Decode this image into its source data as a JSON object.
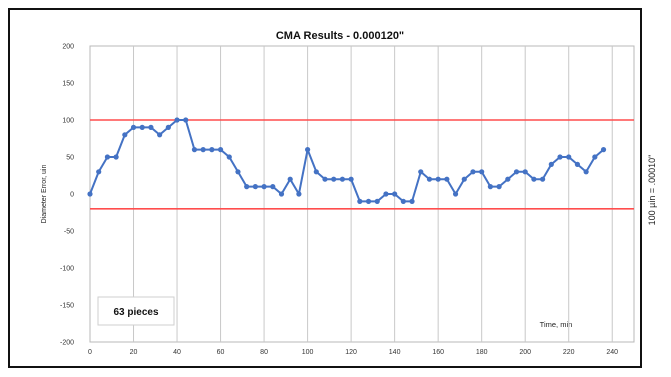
{
  "side_note": "100 µin = .00010\"",
  "chart_data": {
    "type": "line",
    "title": "CMA Results - 0.000120\"",
    "xlabel": "Time, min",
    "ylabel": "Diameter Error, uin",
    "annotation": "63 pieces",
    "xlim": [
      0,
      250
    ],
    "ylim": [
      -200,
      200
    ],
    "x_ticks": [
      0,
      20,
      40,
      60,
      80,
      100,
      120,
      140,
      160,
      180,
      200,
      220,
      240
    ],
    "y_ticks": [
      200,
      150,
      100,
      50,
      0,
      -50,
      -100,
      -150,
      -200
    ],
    "x_tick_labels": [
      "0",
      "20",
      "40",
      "60",
      "80",
      "100",
      "120",
      "140",
      "160",
      "180",
      "200",
      "220",
      "240"
    ],
    "y_tick_labels": [
      "200",
      "150",
      "100",
      "50",
      "0",
      "-50",
      "-100",
      "-150",
      "-200"
    ],
    "grid": "vertical",
    "limit_lines": [
      100,
      -20
    ],
    "series": [
      {
        "color": "#4472c4",
        "x": [
          0,
          4,
          8,
          12,
          16,
          20,
          24,
          28,
          32,
          36,
          40,
          44,
          48,
          52,
          56,
          60,
          64,
          68,
          72,
          76,
          80,
          84,
          88,
          92,
          96,
          100,
          104,
          108,
          112,
          116,
          120,
          124,
          128,
          132,
          136,
          140,
          144,
          148,
          152,
          156,
          160,
          164,
          168,
          172,
          176,
          180,
          184,
          188,
          192,
          196,
          200,
          204,
          208,
          212,
          216,
          220,
          224,
          228,
          232,
          236
        ],
        "y": [
          0,
          30,
          50,
          50,
          80,
          90,
          90,
          90,
          80,
          90,
          100,
          100,
          60,
          60,
          60,
          60,
          50,
          30,
          10,
          10,
          10,
          10,
          0,
          20,
          0,
          60,
          30,
          20,
          20,
          20,
          20,
          -10,
          -10,
          -10,
          0,
          0,
          -10,
          -10,
          30,
          20,
          20,
          20,
          0,
          20,
          30,
          30,
          10,
          10,
          20,
          30,
          30,
          20,
          20,
          40,
          50,
          50,
          40,
          30,
          50,
          60
        ]
      }
    ]
  }
}
